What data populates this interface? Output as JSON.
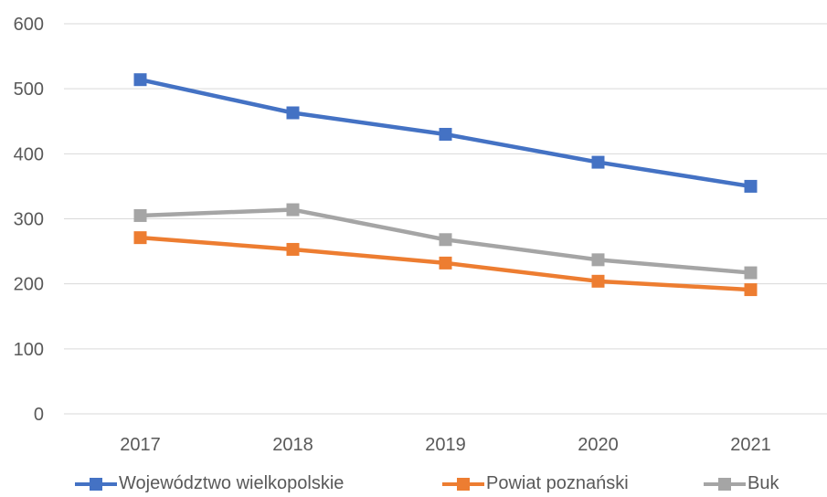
{
  "chart_data": {
    "type": "line",
    "title": "",
    "xlabel": "",
    "ylabel": "",
    "categories": [
      "2017",
      "2018",
      "2019",
      "2020",
      "2021"
    ],
    "ylim": [
      0,
      600
    ],
    "yticks": [
      "0",
      "100",
      "200",
      "300",
      "400",
      "500",
      "600"
    ],
    "grid": true,
    "legend_position": "bottom",
    "series": [
      {
        "name": "Województwo wielkopolskie",
        "color": "#4472C4",
        "marker": "square",
        "values": [
          514,
          463,
          430,
          387,
          350
        ]
      },
      {
        "name": "Powiat poznański",
        "color": "#ED7D31",
        "marker": "square",
        "values": [
          271,
          253,
          232,
          204,
          191
        ]
      },
      {
        "name": "Buk",
        "color": "#A5A5A5",
        "marker": "square",
        "values": [
          305,
          314,
          268,
          237,
          217
        ]
      }
    ]
  }
}
